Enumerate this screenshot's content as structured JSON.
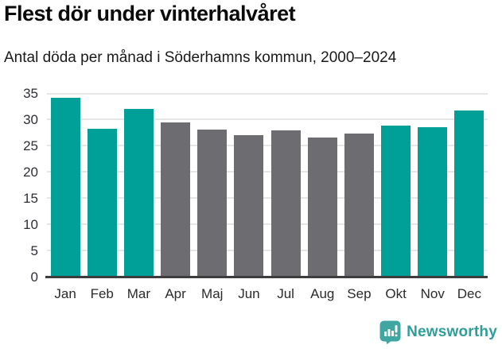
{
  "header": {
    "title": "Flest dör under vinterhalvåret",
    "subtitle": "Antal döda per månad i Söderhamns kommun, 2000–2024"
  },
  "chart_data": {
    "type": "bar",
    "title": "Flest dör under vinterhalvåret",
    "subtitle": "Antal döda per månad i Söderhamns kommun, 2000–2024",
    "categories": [
      "Jan",
      "Feb",
      "Mar",
      "Apr",
      "Maj",
      "Jun",
      "Jul",
      "Aug",
      "Sep",
      "Okt",
      "Nov",
      "Dec"
    ],
    "values": [
      34.1,
      28.2,
      32.1,
      29.4,
      28.1,
      27.1,
      27.9,
      26.5,
      27.3,
      28.8,
      28.5,
      31.8
    ],
    "bar_groups": [
      "winter",
      "winter",
      "winter",
      "summer",
      "summer",
      "summer",
      "summer",
      "summer",
      "summer",
      "winter",
      "winter",
      "winter"
    ],
    "palette": {
      "winter": "#00a099",
      "summer": "#6c6c71"
    },
    "xlabel": "",
    "ylabel": "",
    "ylim": [
      0,
      35
    ],
    "yticks": [
      0,
      5,
      10,
      15,
      20,
      25,
      30,
      35
    ],
    "grid": "horizontal",
    "legend": "none"
  },
  "footer": {
    "brand": "Newsworthy",
    "brand_text_color": "#2f9d99",
    "brand_icon_color": "#3fa6a1"
  }
}
